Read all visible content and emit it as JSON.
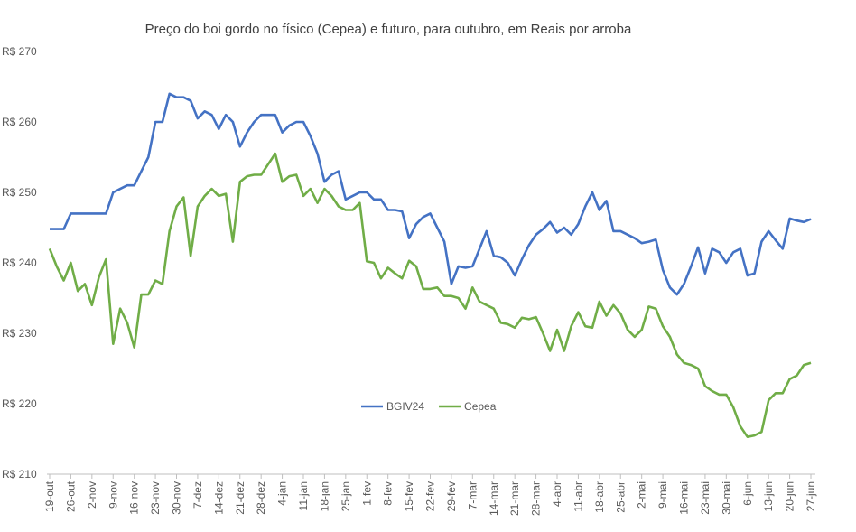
{
  "chart_data": {
    "type": "line",
    "title": "Preço do boi gordo no físico (Cepea) e futuro, para outubro, em Reais por arroba",
    "categories": [
      "19-out",
      null,
      null,
      "26-out",
      null,
      null,
      "2-nov",
      null,
      null,
      "9-nov",
      null,
      null,
      "16-nov",
      null,
      null,
      "23-nov",
      null,
      null,
      "30-nov",
      null,
      null,
      "7-dez",
      null,
      null,
      "14-dez",
      null,
      null,
      "21-dez",
      null,
      null,
      "28-dez",
      null,
      null,
      "4-jan",
      null,
      null,
      "11-jan",
      null,
      null,
      "18-jan",
      null,
      null,
      "25-jan",
      null,
      null,
      "1-fev",
      null,
      null,
      "8-fev",
      null,
      null,
      "15-fev",
      null,
      null,
      "22-fev",
      null,
      null,
      "29-fev",
      null,
      null,
      "7-mar",
      null,
      null,
      "14-mar",
      null,
      null,
      "21-mar",
      null,
      null,
      "28-mar",
      null,
      null,
      "4-abr",
      null,
      null,
      "11-abr",
      null,
      null,
      "18-abr",
      null,
      null,
      "25-abr",
      null,
      null,
      "2-mai",
      null,
      null,
      "9-mai",
      null,
      null,
      "16-mai",
      null,
      null,
      "23-mai",
      null,
      null,
      "30-mai",
      null,
      null,
      "6-jun",
      null,
      null,
      "13-jun",
      null,
      null,
      "20-jun",
      null,
      null,
      "27-jun"
    ],
    "series": [
      {
        "name": "BGIV24",
        "color": "#4472c4",
        "values": [
          244.8,
          244.8,
          244.8,
          247,
          247,
          247,
          247,
          247,
          247,
          250,
          250.5,
          251,
          251,
          253,
          255,
          260,
          260,
          264,
          263.5,
          263.5,
          263,
          260.5,
          261.5,
          261,
          259,
          261,
          260,
          256.5,
          258.5,
          260,
          261,
          261,
          261,
          258.5,
          259.5,
          260,
          260,
          258,
          255.5,
          251.5,
          252.5,
          253,
          249,
          249.5,
          250,
          250,
          249,
          249,
          247.5,
          247.5,
          247.3,
          243.5,
          245.5,
          246.5,
          247,
          245,
          243,
          237,
          239.5,
          239.3,
          239.5,
          242,
          244.5,
          241,
          240.8,
          240,
          238.2,
          240.5,
          242.5,
          244,
          244.8,
          245.8,
          244.3,
          245,
          244,
          245.5,
          248,
          250,
          247.5,
          248.8,
          244.5,
          244.5,
          244,
          243.5,
          242.8,
          243,
          243.3,
          239,
          236.5,
          235.5,
          237,
          239.5,
          242.2,
          238.5,
          242,
          241.5,
          240,
          241.5,
          242,
          238.2,
          238.5,
          243,
          244.5,
          243.2,
          242,
          246.3,
          246,
          245.8,
          246.2
        ]
      },
      {
        "name": "Cepea",
        "color": "#70ad47",
        "values": [
          242,
          239.5,
          237.5,
          240,
          236,
          237,
          234,
          238,
          240.5,
          228.5,
          233.5,
          231.5,
          228,
          235.5,
          235.5,
          237.5,
          237,
          244.5,
          248,
          249.3,
          241,
          248,
          249.5,
          250.5,
          249.5,
          249.8,
          243,
          251.5,
          252.3,
          252.5,
          252.5,
          254,
          255.5,
          251.5,
          252.3,
          252.5,
          249.5,
          250.5,
          248.5,
          250.5,
          249.5,
          248,
          247.5,
          247.5,
          248.5,
          240.2,
          240,
          237.8,
          239.3,
          238.5,
          237.8,
          240.3,
          239.5,
          236.3,
          236.3,
          236.5,
          235.3,
          235.3,
          235,
          233.5,
          236.5,
          234.5,
          234,
          233.5,
          231.5,
          231.3,
          230.8,
          232.2,
          232,
          232.3,
          230,
          227.5,
          230.5,
          227.5,
          231,
          233,
          231,
          230.8,
          234.5,
          232.5,
          234,
          232.8,
          230.5,
          229.5,
          230.5,
          233.8,
          233.5,
          231,
          229.5,
          227,
          225.8,
          225.5,
          225,
          222.5,
          221.8,
          221.3,
          221.3,
          219.5,
          216.8,
          215.3,
          215.5,
          216,
          220.5,
          221.5,
          221.5,
          223.5,
          224,
          225.5,
          225.8
        ]
      }
    ],
    "ylim": [
      210,
      270
    ],
    "yticks": [
      {
        "value": 210,
        "label": "R$ 210"
      },
      {
        "value": 220,
        "label": "R$ 220"
      },
      {
        "value": 230,
        "label": "R$ 230"
      },
      {
        "value": 240,
        "label": "R$ 240"
      },
      {
        "value": 250,
        "label": "R$ 250"
      },
      {
        "value": 260,
        "label": "R$ 260"
      },
      {
        "value": 270,
        "label": "R$ 270"
      }
    ],
    "grid": false
  }
}
